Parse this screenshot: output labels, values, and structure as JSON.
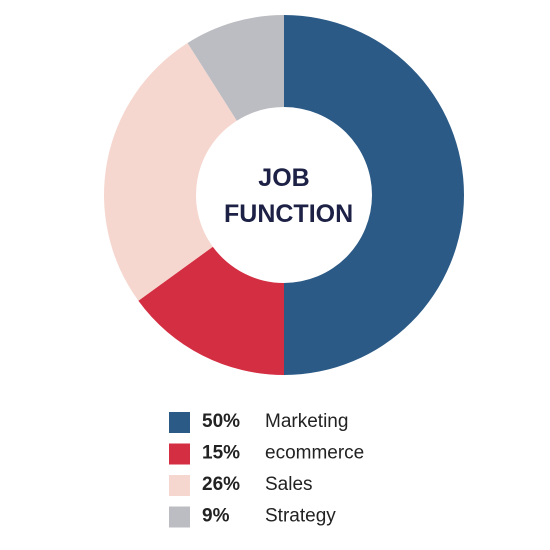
{
  "chart_data": {
    "type": "pie",
    "title": "JOB FUNCTION",
    "categories": [
      "Marketing",
      "ecommerce",
      "Sales",
      "Strategy"
    ],
    "values": [
      50,
      15,
      26,
      9
    ],
    "value_labels": [
      "50%",
      "15%",
      "26%",
      "9%"
    ],
    "colors": [
      "#2b5a86",
      "#d42e42",
      "#f5d7cf",
      "#bcbdc2"
    ]
  }
}
